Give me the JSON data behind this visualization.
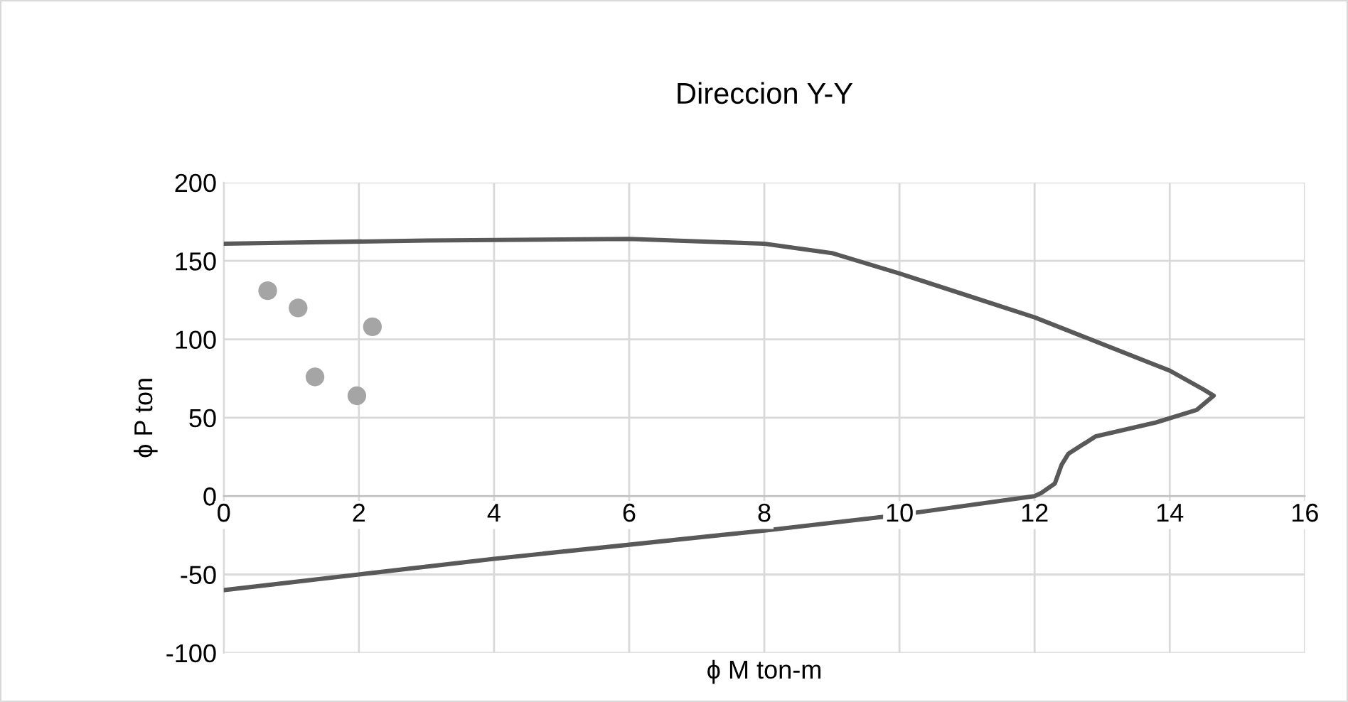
{
  "chart_data": {
    "type": "line",
    "title": "Direccion Y-Y",
    "xlabel": "ϕ M ton-m",
    "ylabel": "ϕ P ton",
    "xlim": [
      0,
      16
    ],
    "xticks": [
      0,
      2,
      4,
      6,
      8,
      10,
      12,
      14,
      16
    ],
    "ylim": [
      -100,
      200
    ],
    "yticks": [
      -100,
      -50,
      0,
      50,
      100,
      150,
      200
    ],
    "grid": true,
    "legend": false,
    "series": [
      {
        "type": "line",
        "color": "#595959",
        "marker": "none",
        "x": [
          0,
          3,
          6,
          8,
          9,
          10,
          11,
          12,
          13,
          14,
          14.5,
          14.65,
          14.4,
          13.8,
          12.9,
          12.5,
          12.4,
          12.3,
          12.1,
          12,
          10,
          8,
          6,
          4,
          2,
          0
        ],
        "values": [
          161,
          163,
          164,
          161,
          155,
          142,
          128,
          114,
          97,
          80,
          68,
          64,
          55,
          47,
          38,
          27,
          20,
          8,
          2,
          0,
          -12,
          -22,
          -31,
          -40,
          -50,
          -60
        ]
      },
      {
        "type": "scatter",
        "color": "#a5a5a5",
        "marker": "circle",
        "x": [
          0.65,
          1.1,
          1.35,
          1.97,
          2.2
        ],
        "values": [
          131,
          120,
          76,
          64,
          108
        ]
      }
    ]
  }
}
